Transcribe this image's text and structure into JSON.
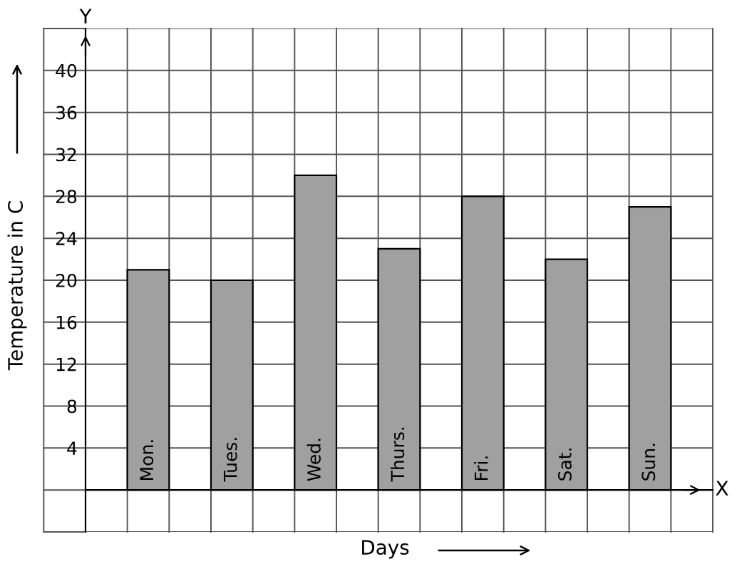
{
  "chart_data": {
    "type": "bar",
    "xlabel": "Days",
    "ylabel": "Temperature in C",
    "categories": [
      "Mon.",
      "Tues.",
      "Wed.",
      "Thurs.",
      "Fri.",
      "Sat.",
      "Sun."
    ],
    "values": [
      21,
      20,
      30,
      23,
      28,
      22,
      27
    ],
    "color": "#a0a0a0",
    "ylim": [
      -4,
      44
    ],
    "yticks": [
      4,
      8,
      12,
      16,
      20,
      24,
      28,
      32,
      36,
      40
    ],
    "grid": true,
    "annotations": [
      "X",
      "Y"
    ]
  }
}
